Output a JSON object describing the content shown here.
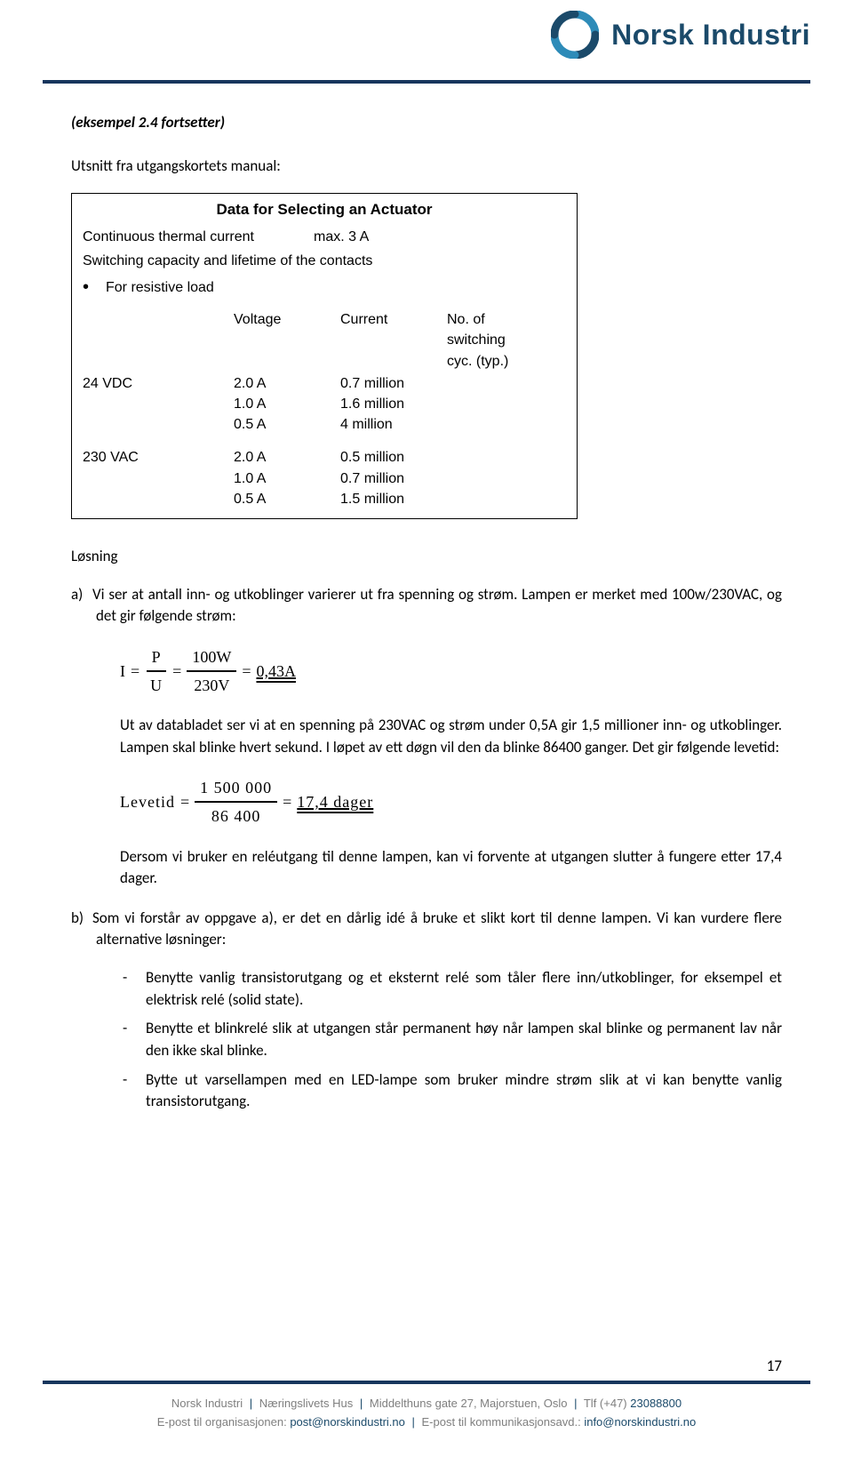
{
  "brand": {
    "name": "Norsk Industri"
  },
  "header_color": "#17365d",
  "content": {
    "ex_title": "(eksempel 2.4 fortsetter)",
    "manual_line": "Utsnitt fra utgangskortets manual:"
  },
  "table": {
    "title": "Data for Selecting an Actuator",
    "row_current": {
      "label": "Continuous thermal current",
      "value": "max. 3 A"
    },
    "row_capacity": "Switching capacity and lifetime of the contacts",
    "bullet": "For resistive load",
    "headers": {
      "h1": "Voltage",
      "h2": "Current",
      "h3a": "No. of",
      "h3b": "switching",
      "h3c": "cyc. (typ.)"
    },
    "groups": [
      {
        "voltage": "24 VDC",
        "rows": [
          {
            "current": "2.0 A",
            "cycles": "0.7 million"
          },
          {
            "current": "1.0 A",
            "cycles": "1.6 million"
          },
          {
            "current": "0.5 A",
            "cycles": "4 million"
          }
        ]
      },
      {
        "voltage": "230 VAC",
        "rows": [
          {
            "current": "2.0 A",
            "cycles": "0.5 million"
          },
          {
            "current": "1.0 A",
            "cycles": "0.7 million"
          },
          {
            "current": "0.5 A",
            "cycles": "1.5 million"
          }
        ]
      }
    ]
  },
  "solution": {
    "heading": "Løsning",
    "a_intro": "Vi ser at antall inn- og utkoblinger varierer ut fra spenning og strøm. Lampen er merket med 100w/230VAC, og det gir følgende strøm:",
    "formula1": {
      "lhs": "I",
      "eq": "=",
      "f1n": "P",
      "f1d": "U",
      "f2n": "100W",
      "f2d": "230V",
      "result": "0,43A"
    },
    "a_para2": "Ut av databladet ser vi at en spenning på 230VAC og strøm under 0,5A gir 1,5 millioner inn- og utkoblinger. Lampen skal blinke hvert sekund. I løpet av ett døgn vil den da blinke 86400 ganger. Det gir følgende levetid:",
    "formula2": {
      "lhs": "Levetid",
      "eq": "=",
      "num": "1 500 000",
      "den": "86 400",
      "result": "17,4 dager"
    },
    "a_para3": "Dersom vi bruker en reléutgang til denne lampen, kan vi forvente at utgangen slutter å fungere etter 17,4 dager.",
    "b_intro": "Som vi forstår av oppgave a), er det en dårlig idé å bruke et slikt kort til denne lampen. Vi kan vurdere flere alternative løsninger:",
    "b_items": [
      "Benytte vanlig transistorutgang og et eksternt relé som tåler flere inn/utkoblinger, for eksempel et elektrisk relé (solid state).",
      "Benytte et blinkrelé slik at utgangen står permanent høy når lampen skal blinke og permanent lav når den ikke skal blinke.",
      "Bytte ut varsellampen med en LED-lampe som bruker mindre strøm slik at vi kan benytte vanlig transistorutgang."
    ]
  },
  "page_number": "17",
  "footer": {
    "org": "Norsk Industri",
    "building": "Næringslivets Hus",
    "address": "Middelthuns gate 27, Majorstuen, Oslo",
    "phone_label": "Tlf (+47)",
    "phone": "23088800",
    "email1_label": "E-post til organisasjonen:",
    "email1": "post@norskindustri.no",
    "email2_label": "E-post til kommunikasjonsavd.:",
    "email2": "info@norskindustri.no"
  }
}
